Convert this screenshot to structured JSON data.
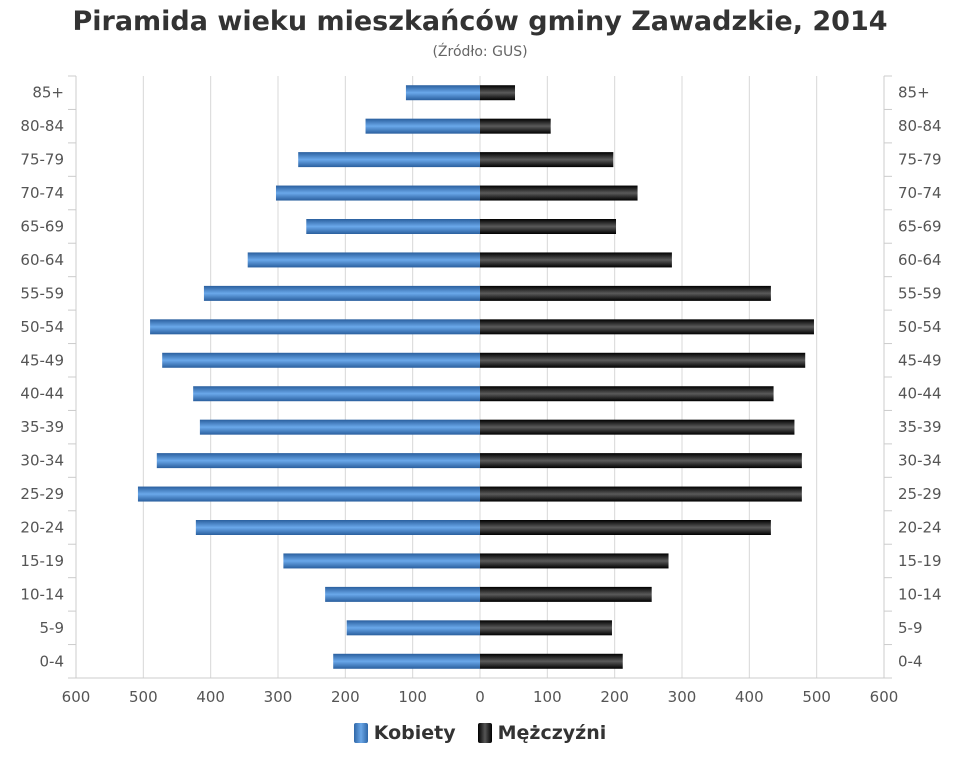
{
  "chart_data": {
    "type": "bar",
    "orientation": "horizontal-population-pyramid",
    "title": "Piramida wieku mieszkańców gminy Zawadzkie, 2014",
    "subtitle": "(Źródło: GUS)",
    "categories": [
      "85+",
      "80-84",
      "75-79",
      "70-74",
      "65-69",
      "60-64",
      "55-59",
      "50-54",
      "45-49",
      "40-44",
      "35-39",
      "30-34",
      "25-29",
      "20-24",
      "15-19",
      "10-14",
      "5-9",
      "0-4"
    ],
    "series": [
      {
        "name": "Kobiety",
        "side": "left",
        "color": "#3d7cc9",
        "values": [
          110,
          170,
          270,
          303,
          258,
          345,
          410,
          490,
          472,
          426,
          416,
          480,
          508,
          422,
          292,
          230,
          198,
          218
        ]
      },
      {
        "name": "Mężczyźni",
        "side": "right",
        "color": "#1a1a1a",
        "values": [
          52,
          105,
          198,
          234,
          202,
          285,
          432,
          496,
          483,
          436,
          467,
          478,
          478,
          432,
          280,
          255,
          196,
          212
        ]
      }
    ],
    "x_ticks": [
      "600",
      "500",
      "400",
      "300",
      "200",
      "100",
      "0",
      "100",
      "200",
      "300",
      "400",
      "500",
      "600"
    ],
    "xlim": [
      -600,
      600
    ],
    "grid": true,
    "legend_position": "bottom-center"
  },
  "legend": {
    "kobiety": "Kobiety",
    "mezczyzni": "Mężczyźni"
  }
}
